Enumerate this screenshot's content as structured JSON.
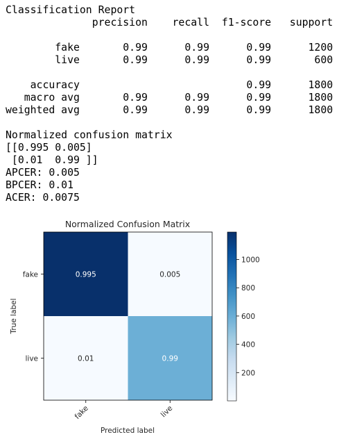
{
  "report": {
    "lines": [
      "Classification Report",
      "              precision    recall  f1-score   support",
      "",
      "        fake       0.99      0.99      0.99      1200",
      "        live       0.99      0.99      0.99       600",
      "",
      "    accuracy                           0.99      1800",
      "   macro avg       0.99      0.99      0.99      1800",
      "weighted avg       0.99      0.99      0.99      1800",
      "",
      "Normalized confusion matrix",
      "[[0.995 0.005]",
      " [0.01  0.99 ]]",
      "APCER: 0.005",
      "BPCER: 0.01",
      "ACER: 0.0075"
    ]
  },
  "chart_data": {
    "type": "heatmap",
    "title": "Normalized Confusion Matrix",
    "xlabel": "Predicted label",
    "ylabel": "True label",
    "x_categories": [
      "fake",
      "live"
    ],
    "y_categories": [
      "fake",
      "live"
    ],
    "cell_labels": [
      [
        "0.995",
        "0.005"
      ],
      [
        "0.01",
        "0.99"
      ]
    ],
    "counts": [
      [
        1194,
        6
      ],
      [
        6,
        594
      ]
    ],
    "colorbar": {
      "ticks": [
        200,
        400,
        600,
        800,
        1000
      ],
      "min": 0,
      "max": 1194,
      "colormap": "Blues"
    }
  }
}
